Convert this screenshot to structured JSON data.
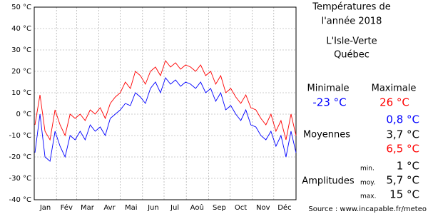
{
  "chart_data": {
    "type": "line",
    "xlim": [
      0,
      365
    ],
    "xgrid": [
      0,
      31,
      59,
      90,
      120,
      151,
      181,
      212,
      243,
      273,
      304,
      334,
      365
    ],
    "xticks": [
      {
        "value": 15.5,
        "label": "Jan"
      },
      {
        "value": 45,
        "label": "Fév"
      },
      {
        "value": 74,
        "label": "Mar"
      },
      {
        "value": 105,
        "label": "Avr"
      },
      {
        "value": 135,
        "label": "Mai"
      },
      {
        "value": 166,
        "label": "Jun"
      },
      {
        "value": 196,
        "label": "Jul"
      },
      {
        "value": 227,
        "label": "Aoû"
      },
      {
        "value": 258,
        "label": "Sep"
      },
      {
        "value": 288,
        "label": "Oct"
      },
      {
        "value": 319,
        "label": "Nov"
      },
      {
        "value": 349,
        "label": "Déc"
      }
    ],
    "ylim": [
      -40,
      50
    ],
    "yticks": [
      {
        "value": -40,
        "label": "-40 °C"
      },
      {
        "value": -30,
        "label": "-30 °C"
      },
      {
        "value": -20,
        "label": "-20 °C"
      },
      {
        "value": -10,
        "label": "-10 °C"
      },
      {
        "value": 0,
        "label": "0 °C"
      },
      {
        "value": 10,
        "label": "10 °C"
      },
      {
        "value": 20,
        "label": "20 °C"
      },
      {
        "value": 30,
        "label": "30 °C"
      },
      {
        "value": 40,
        "label": "40 °C"
      },
      {
        "value": 50,
        "label": "50 °C"
      }
    ],
    "grid": true,
    "x": [
      1,
      8,
      15,
      22,
      29,
      36,
      43,
      50,
      57,
      64,
      71,
      78,
      85,
      92,
      99,
      106,
      113,
      120,
      127,
      134,
      141,
      148,
      155,
      162,
      169,
      176,
      183,
      190,
      197,
      204,
      211,
      218,
      225,
      232,
      239,
      246,
      253,
      260,
      267,
      274,
      281,
      288,
      295,
      302,
      309,
      316,
      323,
      330,
      337,
      344,
      351,
      358,
      365
    ],
    "series": [
      {
        "color": "#ff0000",
        "values": [
          -5,
          9,
          -8,
          -12,
          2,
          -5,
          -10,
          0,
          -2,
          0,
          -3,
          2,
          0,
          3,
          -2,
          5,
          8,
          10,
          15,
          12,
          20,
          18,
          14,
          20,
          22,
          18,
          25,
          22,
          24,
          21,
          23,
          22,
          20,
          23,
          18,
          20,
          14,
          18,
          10,
          12,
          8,
          5,
          9,
          3,
          2,
          -2,
          -5,
          0,
          -8,
          -3,
          -12,
          0,
          -10
        ]
      },
      {
        "color": "#0000ff",
        "values": [
          -18,
          0,
          -20,
          -22,
          -8,
          -15,
          -20,
          -10,
          -12,
          -8,
          -12,
          -5,
          -8,
          -6,
          -10,
          -2,
          0,
          2,
          5,
          4,
          10,
          8,
          5,
          12,
          15,
          10,
          17,
          14,
          16,
          13,
          15,
          14,
          12,
          15,
          10,
          12,
          6,
          10,
          2,
          4,
          0,
          -3,
          2,
          -5,
          -6,
          -10,
          -12,
          -8,
          -15,
          -10,
          -20,
          -8,
          -18
        ]
      }
    ]
  },
  "panel": {
    "title": [
      "Températures de",
      "l'année 2018",
      "L'Isle-Verte",
      "Québec"
    ],
    "min_label": "Minimale",
    "max_label": "Maximale",
    "min_value": "-23 °C",
    "max_value": "26 °C",
    "avg_label": "Moyennes",
    "avg_min": "0,8 °C",
    "avg_mean": "3,7 °C",
    "avg_max": "6,5 °C",
    "amp_label": "Amplitudes",
    "amp_min_label": "min.",
    "amp_mean_label": "moy.",
    "amp_max_label": "max.",
    "amp_min": "1 °C",
    "amp_mean": "5,7 °C",
    "amp_max": "15 °C",
    "source": "Source : www.incapable.fr/meteo"
  }
}
